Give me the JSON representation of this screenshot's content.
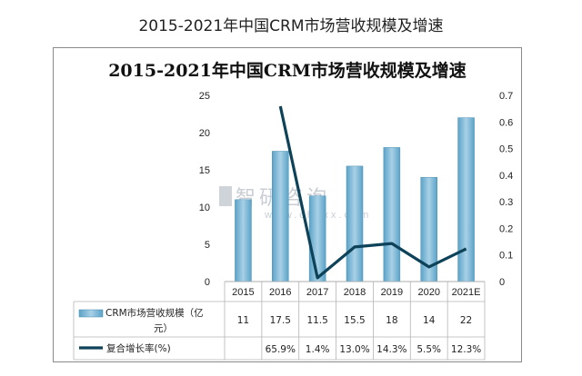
{
  "page": {
    "heading": "2015-2021年中国CRM市场营收规模及增速"
  },
  "watermark": {
    "name_cn": "智研咨询",
    "domain": "www.chyxx.com"
  },
  "colors": {
    "bar": "#5ba3c8",
    "bar_light": "#a9d0e6",
    "line": "#0d4259",
    "grid": "#d9d9d9"
  },
  "chart_data": {
    "type": "bar",
    "title": "2015-2021年中国CRM市场营收规模及增速",
    "categories": [
      "2015",
      "2016",
      "2017",
      "2018",
      "2019",
      "2020",
      "2021E"
    ],
    "ylim": [
      0,
      25
    ],
    "yticks": [
      "0",
      "5",
      "10",
      "15",
      "20",
      "25"
    ],
    "y2lim": [
      0,
      0.7
    ],
    "y2ticks": [
      "0",
      "0.1",
      "0.2",
      "0.3",
      "0.4",
      "0.5",
      "0.6",
      "0.7"
    ],
    "series": [
      {
        "name": "CRM市场营收规模（亿元）",
        "type": "bar",
        "axis": "left",
        "values": [
          11,
          17.5,
          11.5,
          15.5,
          18,
          14,
          22
        ],
        "labels": [
          "11",
          "17.5",
          "11.5",
          "15.5",
          "18",
          "14",
          "22"
        ]
      },
      {
        "name": "复合增长率(%)",
        "type": "line",
        "axis": "right",
        "values": [
          null,
          0.659,
          0.014,
          0.13,
          0.143,
          0.055,
          0.123
        ],
        "labels": [
          "",
          "65.9%",
          "1.4%",
          "13.0%",
          "14.3%",
          "5.5%",
          "12.3%"
        ]
      }
    ],
    "legend": "table-below",
    "grid": false
  }
}
